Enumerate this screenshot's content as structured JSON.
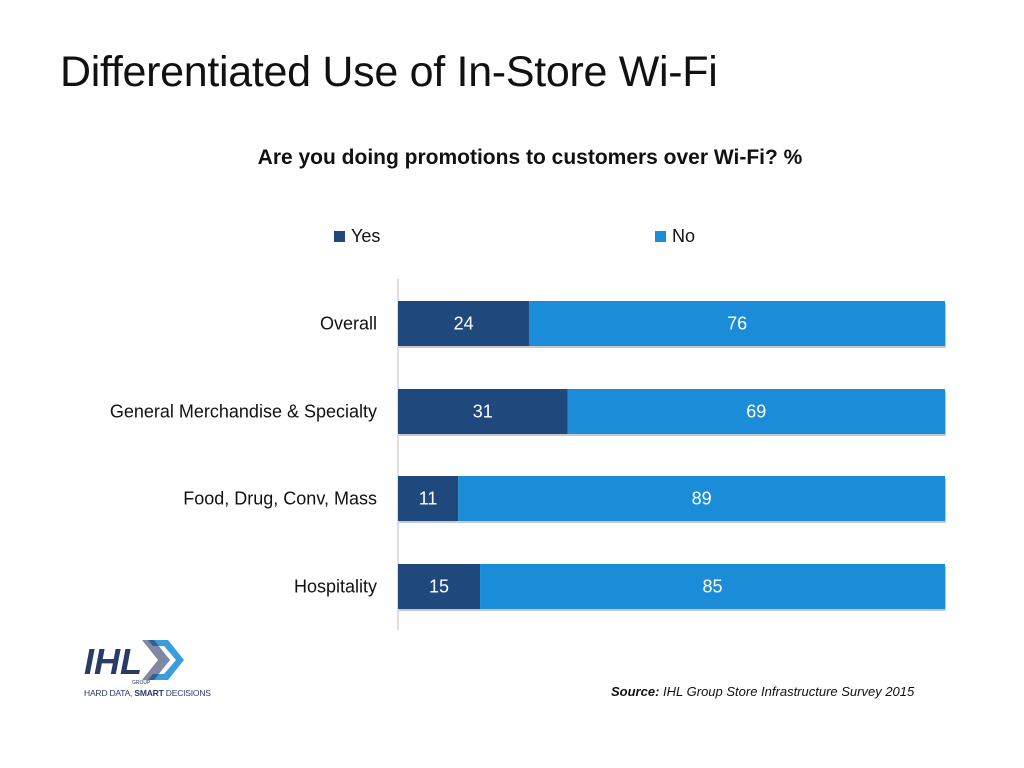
{
  "slide": {
    "title": "Differentiated Use of In-Store Wi-Fi"
  },
  "chart_data": {
    "type": "bar",
    "orientation": "horizontal",
    "stacked": true,
    "title": "Are you doing promotions to customers over Wi-Fi? %",
    "categories": [
      "Overall",
      "General Merchandise & Specialty",
      "Food, Drug, Conv, Mass",
      "Hospitality"
    ],
    "series": [
      {
        "name": "Yes",
        "values": [
          24,
          31,
          11,
          15
        ],
        "color": "#1f497d"
      },
      {
        "name": "No",
        "values": [
          76,
          69,
          89,
          85
        ],
        "color": "#1a8cd8"
      }
    ],
    "xlim": [
      0,
      100
    ],
    "legend_position": "top",
    "grid": false,
    "data_labels": true
  },
  "logo": {
    "name": "IHL",
    "subtext": "GROUP",
    "tagline_part1": "HARD DATA, ",
    "tagline_part2": "SMART",
    "tagline_part3": " DECISIONS"
  },
  "source": {
    "label": "Source:",
    "text": " IHL Group Store Infrastructure Survey 2015"
  }
}
